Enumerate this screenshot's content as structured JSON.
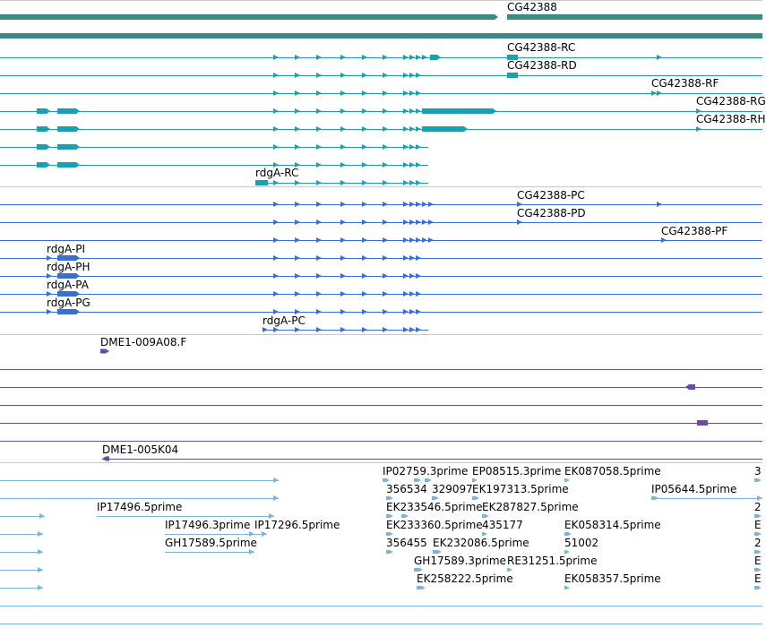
{
  "colors": {
    "gene": "#3a8a84",
    "mrna_flybase": "#1aa0b0",
    "mrna_ref": "#3a6ed0",
    "dme1": "#6a4aa8",
    "est": "#7fb3d8",
    "separator": "#c8c8c8"
  },
  "tracks": {
    "genes": {
      "name": "gene-track",
      "labels": [
        "CG42388"
      ]
    },
    "flybase_mrna": {
      "name": "flybase-mrna-track",
      "labels": [
        "CG42388-RC",
        "CG42388-RD",
        "CG42388-RF",
        "CG42388-RG",
        "CG42388-RH",
        "rdgA-RC"
      ]
    },
    "refseq_mrna": {
      "name": "refseq-mrna-track",
      "labels": [
        "CG42388-PC",
        "CG42388-PD",
        "CG42388-PF",
        "rdgA-PI",
        "rdgA-PH",
        "rdgA-PA",
        "rdgA-PG",
        "rdgA-PC"
      ]
    },
    "dme1": {
      "name": "dme1-clone-track",
      "labels": [
        "DME1-009A08.F",
        "DME1-005K04"
      ]
    },
    "est": {
      "name": "est-track",
      "labels": [
        "IP02759.3prime",
        "EP08515.3prime",
        "EK087058.5prime",
        "3",
        "356534",
        "329097",
        "EK197313.5prime",
        "IP05644.5prime",
        "IP17496.5prime",
        "EK233546.5prime",
        "EK287827.5prime",
        "2",
        "IP17496.3prime",
        "IP17296.5prime",
        "EK233360.5prime",
        "435177",
        "EK058314.5prime",
        "E",
        "GH17589.5prime",
        "356455",
        "EK232086.5prime",
        "51002",
        "2",
        "GH17589.3prime",
        "RE31251.5prime",
        "E",
        "EK258222.5prime",
        "EK058357.5prime",
        "E"
      ]
    }
  },
  "labels": {
    "gene_cg42388": "CG42388",
    "rc": "CG42388-RC",
    "rd": "CG42388-RD",
    "rf": "CG42388-RF",
    "rg": "CG42388-RG",
    "rh": "CG42388-RH",
    "rdga_rc": "rdgA-RC",
    "pc": "CG42388-PC",
    "pd": "CG42388-PD",
    "pf": "CG42388-PF",
    "rdga_pi": "rdgA-PI",
    "rdga_ph": "rdgA-PH",
    "rdga_pa": "rdgA-PA",
    "rdga_pg": "rdgA-PG",
    "rdga_pc": "rdgA-PC",
    "dme1_a": "DME1-009A08.F",
    "dme1_b": "DME1-005K04",
    "est1": "IP02759.3prime",
    "est2": "EP08515.3prime",
    "est3": "EK087058.5prime",
    "est4": "3",
    "est5": "356534",
    "est6": "329097",
    "est7": "EK197313.5prime",
    "est8": "IP05644.5prime",
    "est9": "IP17496.5prime",
    "est10": "EK233546.5prime",
    "est11": "EK287827.5prime",
    "est12": "2",
    "est13": "IP17496.3prime",
    "est14": "IP17296.5prime",
    "est15": "EK233360.5prime",
    "est16": "435177",
    "est17": "EK058314.5prime",
    "est18": "E",
    "est19": "GH17589.5prime",
    "est20": "356455",
    "est21": "EK232086.5prime",
    "est22": "51002",
    "est23": "2",
    "est24": "GH17589.3prime",
    "est25": "RE31251.5prime",
    "est26": "E",
    "est27": "EK258222.5prime",
    "est28": "EK058357.5prime",
    "est29": "E"
  }
}
